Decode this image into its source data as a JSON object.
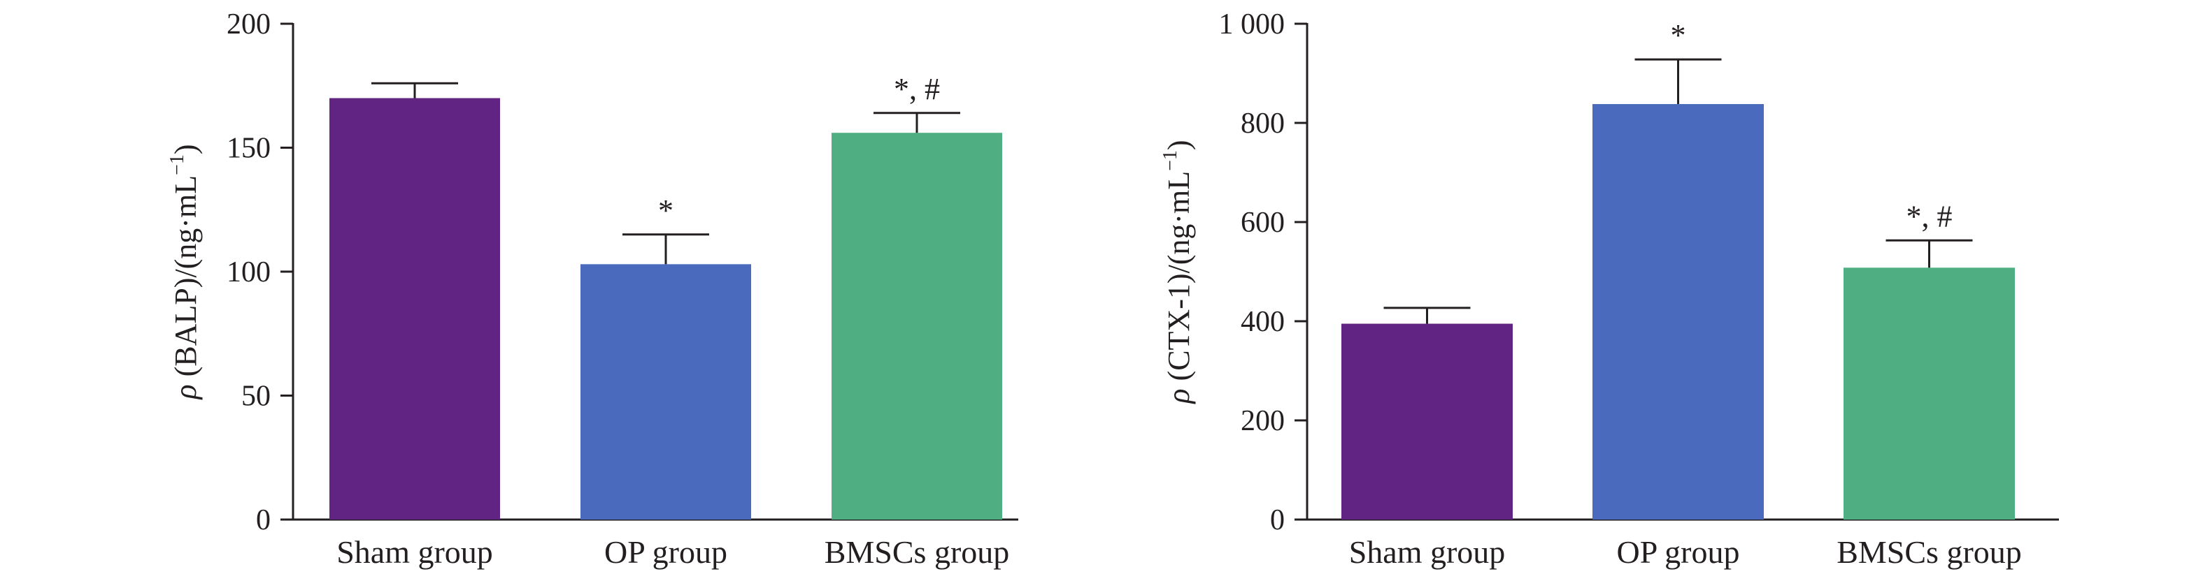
{
  "chart_data": [
    {
      "type": "bar",
      "categories": [
        "Sham group",
        "OP group",
        "BMSCs group"
      ],
      "values": [
        170,
        103,
        156
      ],
      "errors": [
        6,
        12,
        8
      ],
      "annotations": [
        "",
        "*",
        "*, #"
      ],
      "colors": [
        "#622483",
        "#4a6bbd",
        "#4faf82"
      ],
      "ylabel": {
        "symbol": "ρ",
        "text": " (BALP)/(ng·mL",
        "superscript": "−1",
        "suffix": ")"
      },
      "ylim": [
        0,
        200
      ],
      "yticks": [
        0,
        50,
        100,
        150,
        200
      ],
      "ytick_labels": [
        "0",
        "50",
        "100",
        "150",
        "200"
      ]
    },
    {
      "type": "bar",
      "categories": [
        "Sham group",
        "OP group",
        "BMSCs group"
      ],
      "values": [
        395,
        838,
        508
      ],
      "errors": [
        32,
        90,
        55
      ],
      "annotations": [
        "",
        "*",
        "*, #"
      ],
      "colors": [
        "#622483",
        "#4a6bbd",
        "#4faf82"
      ],
      "ylabel": {
        "symbol": "ρ",
        "text": " (CTX-1)/(ng·mL",
        "superscript": "−1",
        "suffix": ")"
      },
      "ylim": [
        0,
        1000
      ],
      "yticks": [
        0,
        200,
        400,
        600,
        800,
        1000
      ],
      "ytick_labels": [
        "0",
        "200",
        "400",
        "600",
        "800",
        "1 000"
      ]
    }
  ]
}
